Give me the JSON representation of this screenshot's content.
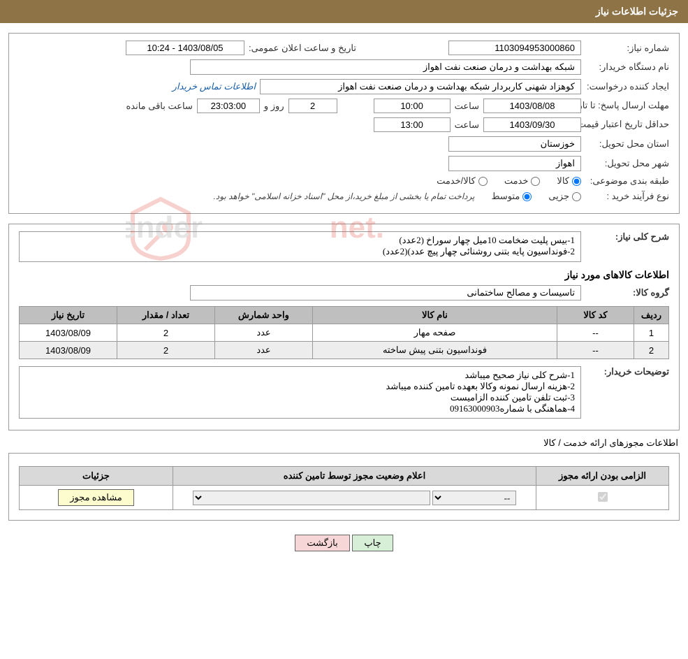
{
  "header": {
    "title": "جزئیات اطلاعات نیاز"
  },
  "need": {
    "number_label": "شماره نیاز:",
    "number": "1103094953000860",
    "announce_label": "تاریخ و ساعت اعلان عمومی:",
    "announce": "1403/08/05 - 10:24",
    "buyer_org_label": "نام دستگاه خریدار:",
    "buyer_org": "شبکه بهداشت و درمان صنعت نفت اهواز",
    "requester_label": "ایجاد کننده درخواست:",
    "requester": "کوهزاد شهنی کاربردار شبکه بهداشت و درمان صنعت نفت اهواز",
    "buyer_contact_link": "اطلاعات تماس خریدار",
    "deadline_label": "مهلت ارسال پاسخ:  تا تاریخ:",
    "deadline_date": "1403/08/08",
    "time_label": "ساعت",
    "deadline_time": "10:00",
    "days_remaining": "2",
    "days_and": "روز و",
    "time_remaining": "23:03:00",
    "remaining_suffix": "ساعت باقی مانده",
    "validity_label": "حداقل تاریخ اعتبار قیمت: تا تاریخ:",
    "validity_date": "1403/09/30",
    "validity_time": "13:00",
    "province_label": "استان محل تحویل:",
    "province": "خوزستان",
    "city_label": "شهر محل تحویل:",
    "city": "اهواز",
    "category_label": "طبقه بندی موضوعی:",
    "cat_goods": "کالا",
    "cat_service": "خدمت",
    "cat_goods_service": "کالا/خدمت",
    "process_label": "نوع فرآیند خرید :",
    "proc_partial": "جزیی",
    "proc_medium": "متوسط",
    "process_note": "پرداخت تمام یا بخشی از مبلغ خرید،از محل \"اسناد خزانه اسلامی\" خواهد بود."
  },
  "desc": {
    "title_label": "شرح کلی نیاز:",
    "text": "1-بیس پلیت ضخامت 10میل چهار سوراخ (2عدد)\n2-فونداسیون پایه بتنی روشنائی چهار پیچ عدد)(2عدد)"
  },
  "items": {
    "heading": "اطلاعات کالاهای مورد نیاز",
    "group_label": "گروه کالا:",
    "group": "تاسیسات و مصالح ساختمانی",
    "cols": {
      "row": "ردیف",
      "code": "کد کالا",
      "name": "نام کالا",
      "unit": "واحد شمارش",
      "qty": "تعداد / مقدار",
      "date": "تاریخ نیاز"
    },
    "rows": [
      {
        "row": "1",
        "code": "--",
        "name": "صفحه مهار",
        "unit": "عدد",
        "qty": "2",
        "date": "1403/08/09"
      },
      {
        "row": "2",
        "code": "--",
        "name": "فونداسیون بتنی پیش ساخته",
        "unit": "عدد",
        "qty": "2",
        "date": "1403/08/09"
      }
    ]
  },
  "buyer_notes": {
    "label": "توضیحات خریدار:",
    "text": "1-شرح کلی نیاز صحیح میباشد\n2-هزینه ارسال نمونه وکالا بعهده تامین کننده میباشد\n3-ثبت تلفن تامین کننده الزامیست\n4-هماهنگی با شماره09163000903"
  },
  "license": {
    "heading": "اطلاعات مجوزهای ارائه خدمت / کالا",
    "cols": {
      "mandatory": "الزامی بودن ارائه مجوز",
      "status": "اعلام وضعیت مجوز توسط تامین کننده",
      "details": "جزئیات"
    },
    "status_value": "--",
    "view_btn": "مشاهده مجوز"
  },
  "footer": {
    "print": "چاپ",
    "back": "بازگشت"
  },
  "watermark_text": "AriaTender.net",
  "colors": {
    "header_bg": "#8e7347",
    "th_bg": "#bfbfbf",
    "license_th_bg": "#d9d9d9",
    "btn_view": "#fdfccf",
    "btn_print": "#d6efd6",
    "btn_back": "#f6d6d6",
    "watermark": "#e24a3b"
  }
}
